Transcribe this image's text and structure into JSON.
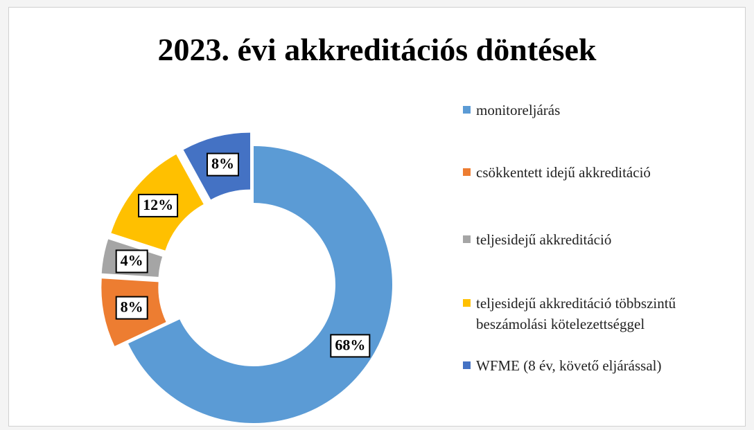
{
  "chart_data": {
    "type": "donut",
    "title": "2023. évi akkreditációs döntések",
    "categories": [
      "monitoreljárás",
      "csökkentett idejű akkreditáció",
      "teljesidejű akkreditáció",
      "teljesidejű akkreditáció többszintű beszámolási kötelezettséggel",
      "WFME (8 év, követő eljárással)"
    ],
    "values": [
      68,
      8,
      4,
      12,
      8
    ],
    "value_labels": [
      "68%",
      "8%",
      "4%",
      "12%",
      "8%"
    ],
    "colors": [
      "#5b9bd5",
      "#ed7d31",
      "#a5a5a5",
      "#ffc000",
      "#4472c4"
    ],
    "legend": "right"
  }
}
